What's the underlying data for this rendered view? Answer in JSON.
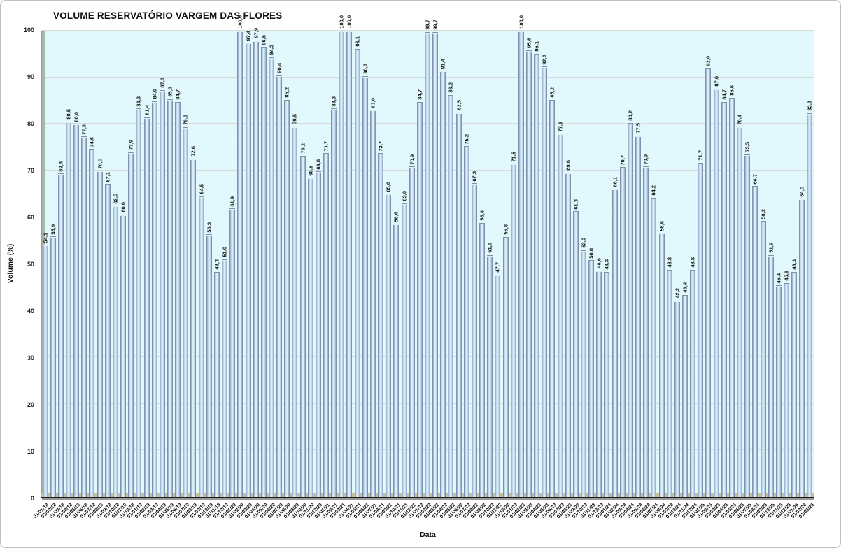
{
  "title": "VOLUME RESERVATÓRIO VARGEM DAS FLORES",
  "y_axis": {
    "title": "Volume (%)",
    "ticks": [
      0,
      10,
      20,
      30,
      40,
      50,
      60,
      70,
      80,
      90,
      100
    ]
  },
  "x_axis": {
    "title": "Data"
  },
  "colors": {
    "plot_background": "#e1f8fc",
    "gridline": "#d9d9d9",
    "bar_mid": "#c3d9ee",
    "bar_edge": "#6e8098",
    "floor": "#c9be95",
    "wall": "#9fada4"
  },
  "chart_data": {
    "type": "bar",
    "title": "VOLUME RESERVATÓRIO VARGEM DAS FLORES",
    "xlabel": "Data",
    "ylabel": "Volume (%)",
    "ylim": [
      0,
      100
    ],
    "grid": true,
    "legend": false,
    "categories": [
      "01/01/18",
      "01/02/18",
      "01/03/18",
      "01/04/18",
      "01/05/18",
      "01/06/18",
      "01/07/18",
      "01/08/18",
      "01/09/18",
      "01/10/18",
      "01/11/18",
      "01/12/18",
      "01/01/19",
      "01/02/19",
      "01/03/19",
      "01/04/19",
      "01/05/19",
      "01/06/19",
      "01/07/19",
      "01/08/19",
      "01/09/19",
      "01/10/19",
      "01/11/19",
      "01/12/19",
      "01/01/20",
      "01/02/20",
      "01/03/20",
      "01/04/20",
      "01/05/20",
      "01/06/20",
      "01/07/20",
      "01/08/20",
      "01/09/20",
      "01/10/20",
      "01/11/20",
      "01/12/20",
      "01/01/21",
      "01/02/21",
      "01/03/21",
      "01/04/21",
      "01/05/21",
      "01/06/21",
      "01/07/21",
      "01/08/21",
      "01/09/21",
      "01/10/21",
      "01/11/21",
      "01/12/21",
      "01/01/22",
      "01/02/22",
      "01/03/22",
      "01/04/22",
      "01/05/22",
      "01/06/22",
      "01/07/22",
      "01/08/22",
      "01/09/22",
      "01/10/22",
      "01/11/22",
      "01/12/22",
      "01/01/23",
      "01/02/23",
      "01/03/23",
      "01/04/23",
      "01/05/23",
      "01/06/23",
      "01/07/23",
      "01/08/23",
      "01/09/23",
      "01/10/23",
      "01/11/23",
      "01/12/23",
      "01/01/24",
      "01/02/24",
      "01/03/24",
      "01/04/24",
      "01/05/24",
      "01/06/24",
      "01/07/24",
      "01/08/24",
      "01/09/24",
      "01/10/24",
      "01/11/24",
      "01/12/24",
      "01/01/25",
      "01/02/25",
      "01/03/25",
      "01/04/25",
      "01/05/25",
      "01/06/25",
      "01/07/25",
      "01/08/25",
      "01/09/25",
      "01/10/25",
      "01/11/25",
      "01/12/25",
      "01/01/26",
      "01/02/26",
      "01/03/26"
    ],
    "values": [
      54.1,
      55.9,
      69.4,
      80.5,
      80.0,
      77.3,
      74.6,
      70.0,
      67.1,
      62.5,
      60.6,
      73.9,
      83.3,
      81.4,
      84.9,
      87.3,
      85.3,
      84.7,
      79.3,
      72.6,
      64.5,
      56.3,
      48.3,
      51.0,
      61.9,
      100.0,
      97.4,
      97.9,
      96.5,
      94.3,
      90.4,
      85.2,
      79.5,
      73.2,
      68.5,
      69.8,
      73.7,
      83.3,
      100.0,
      100.0,
      96.1,
      90.3,
      83.0,
      73.7,
      65.0,
      58.6,
      63.0,
      70.9,
      84.7,
      99.7,
      99.7,
      91.4,
      86.2,
      82.5,
      75.2,
      67.3,
      58.8,
      51.9,
      47.7,
      55.8,
      71.5,
      100.0,
      95.8,
      95.1,
      92.3,
      85.2,
      77.9,
      69.6,
      61.3,
      53.0,
      50.8,
      48.6,
      48.3,
      66.1,
      70.7,
      80.2,
      77.5,
      70.9,
      64.2,
      56.6,
      48.8,
      42.2,
      43.4,
      48.8,
      71.7,
      92.0,
      87.6,
      84.7,
      85.6,
      79.4,
      73.5,
      66.7,
      59.2,
      51.9,
      45.4,
      45.9,
      48.3,
      64.0,
      82.3
    ],
    "value_labels": [
      "54,1",
      "55,9",
      "69,4",
      "80,5",
      "80,0",
      "77,3",
      "74,6",
      "70,0",
      "67,1",
      "62,5",
      "60,6",
      "73,9",
      "83,3",
      "81,4",
      "84,9",
      "87,3",
      "85,3",
      "84,7",
      "79,3",
      "72,6",
      "64,5",
      "56,3",
      "48,3",
      "51,0",
      "61,9",
      "100,0",
      "97,4",
      "97,9",
      "96,5",
      "94,3",
      "90,4",
      "85,2",
      "79,5",
      "73,2",
      "68,5",
      "69,8",
      "73,7",
      "83,3",
      "100,0",
      "100,0",
      "96,1",
      "90,3",
      "83,0",
      "73,7",
      "65,0",
      "58,6",
      "63,0",
      "70,9",
      "84,7",
      "99,7",
      "99,7",
      "91,4",
      "86,2",
      "82,5",
      "75,2",
      "67,3",
      "58,8",
      "51,9",
      "47,7",
      "55,8",
      "71,5",
      "100,0",
      "95,8",
      "95,1",
      "92,3",
      "85,2",
      "77,9",
      "69,6",
      "61,3",
      "53,0",
      "50,8",
      "48,6",
      "48,3",
      "66,1",
      "70,7",
      "80,2",
      "77,5",
      "70,9",
      "64,2",
      "56,6",
      "48,8",
      "42,2",
      "43,4",
      "48,8",
      "71,7",
      "92,0",
      "87,6",
      "84,7",
      "85,6",
      "79,4",
      "73,5",
      "66,7",
      "59,2",
      "51,9",
      "45,4",
      "45,9",
      "48,3",
      "64,0",
      "82,3"
    ]
  }
}
